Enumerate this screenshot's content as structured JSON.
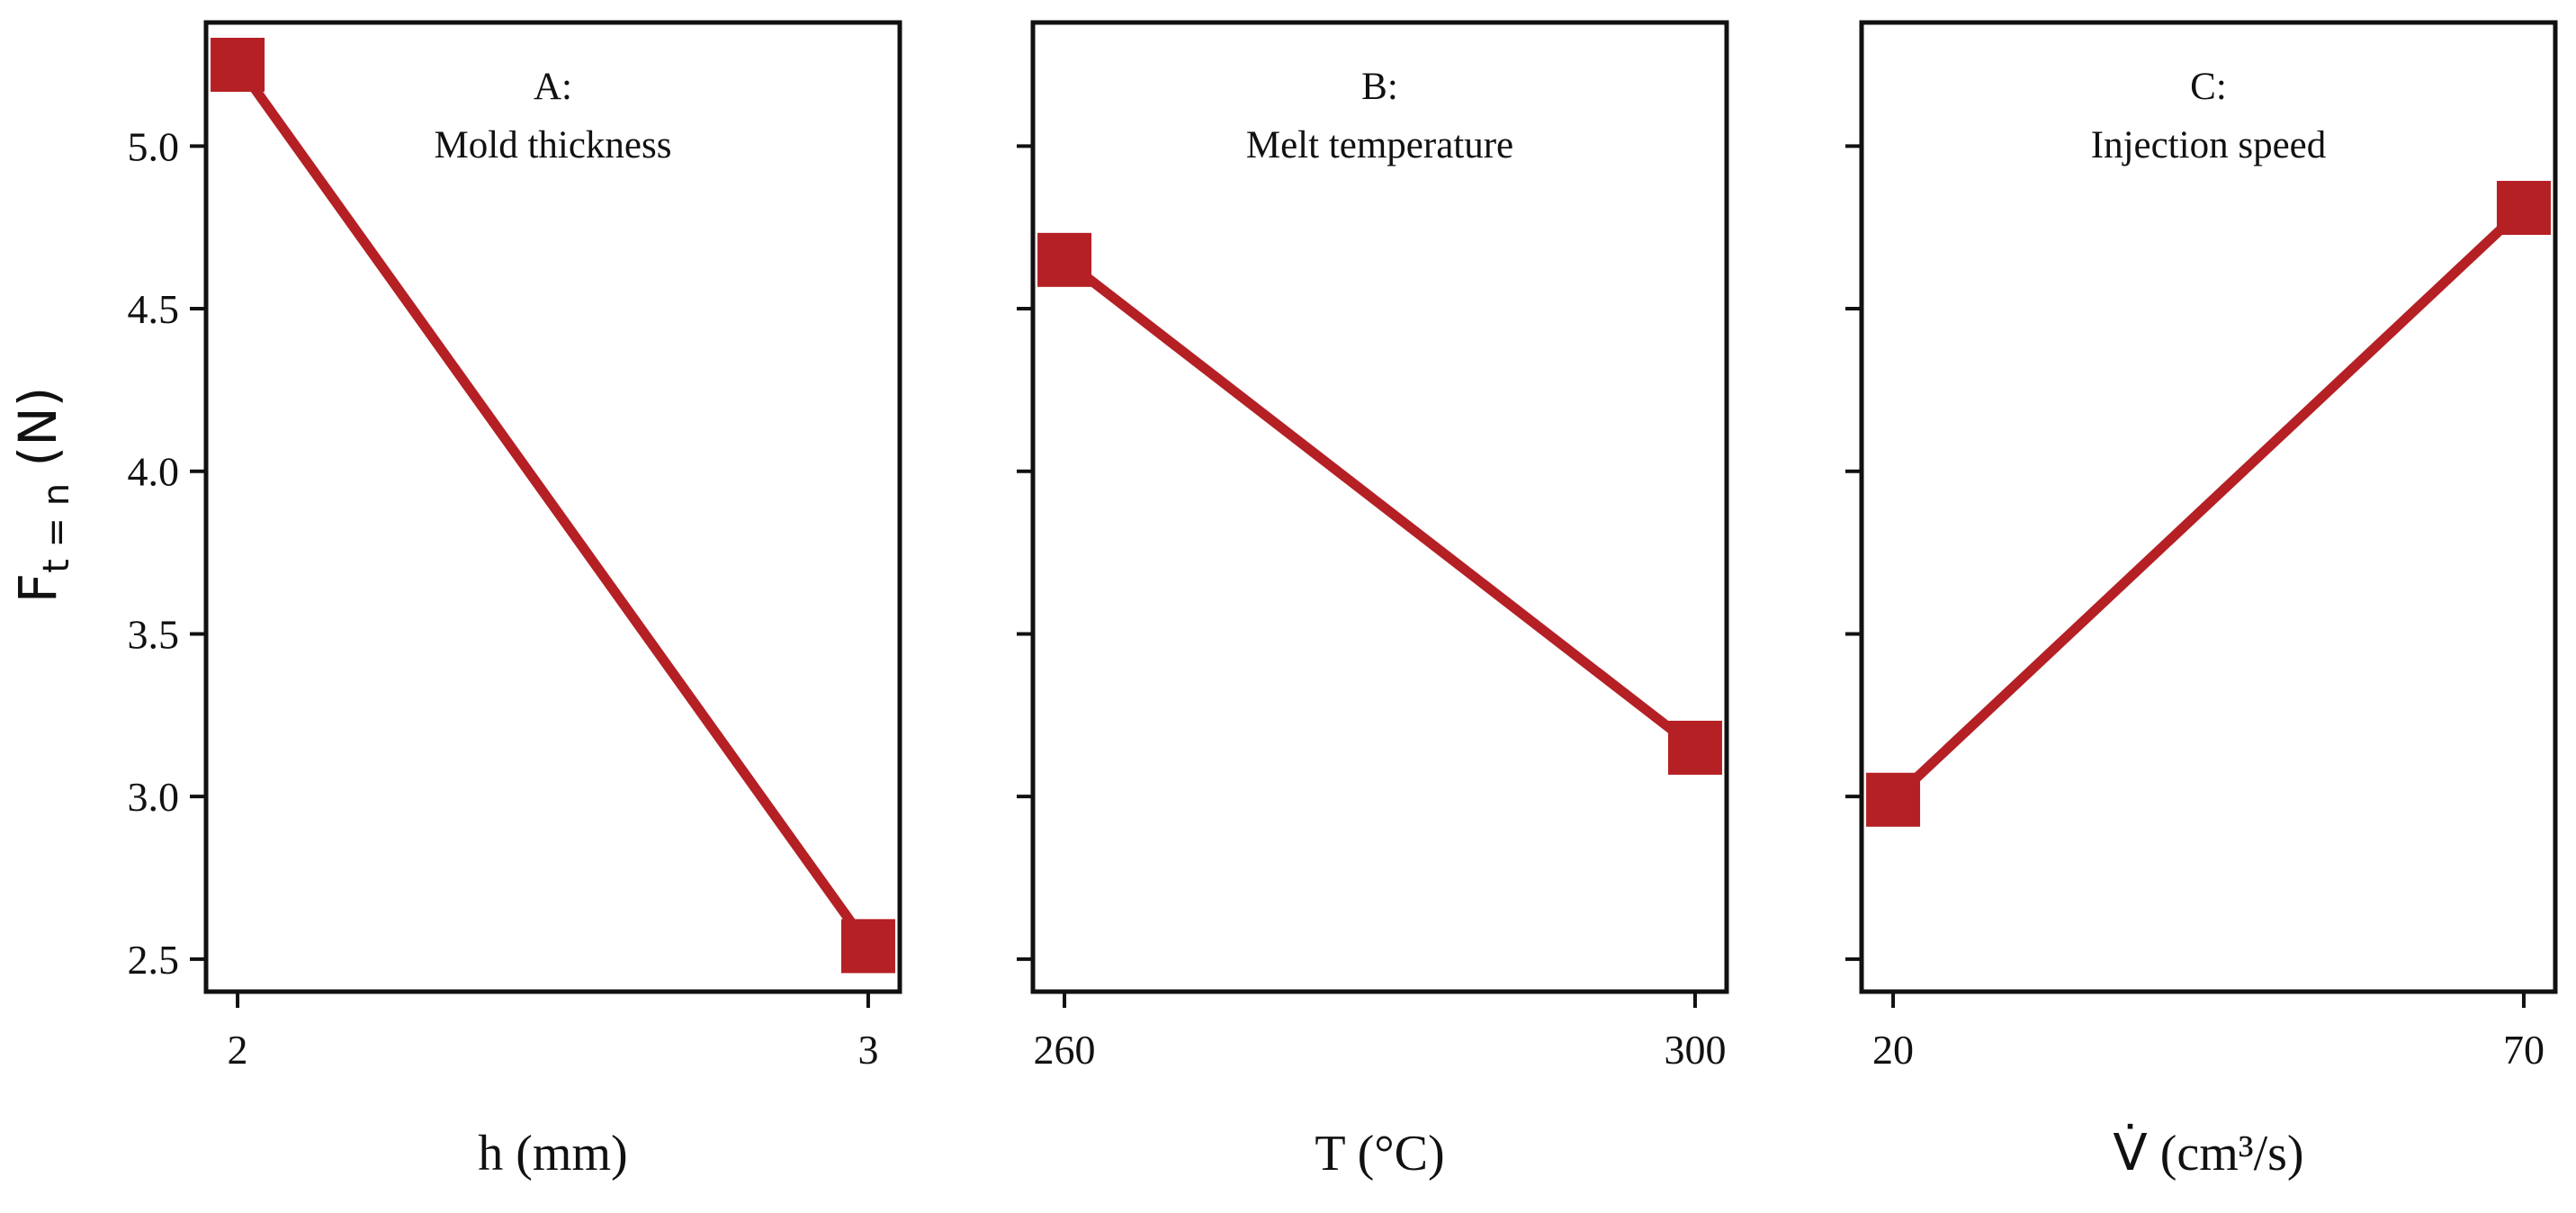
{
  "chart_data": [
    {
      "type": "line",
      "panel": "A",
      "title_line1": "A:",
      "title_line2": "Mold thickness",
      "xlabel": "h (mm)",
      "ylabel_main": "F",
      "ylabel_sub": "t = n",
      "ylabel_unit": " (N)",
      "x": [
        2,
        3
      ],
      "x_tick_labels": [
        "2",
        "3"
      ],
      "values": [
        5.25,
        2.54
      ],
      "xlim": [
        1.95,
        3.05
      ],
      "ylim": [
        2.4,
        5.38
      ],
      "y_ticks": [
        2.5,
        3.0,
        3.5,
        4.0,
        4.5,
        5.0
      ],
      "y_tick_labels": [
        "2.5",
        "3.0",
        "3.5",
        "4.0",
        "4.5",
        "5.0"
      ]
    },
    {
      "type": "line",
      "panel": "B",
      "title_line1": "B:",
      "title_line2": "Melt temperature",
      "xlabel": "T (°C)",
      "x": [
        260,
        300
      ],
      "x_tick_labels": [
        "260",
        "300"
      ],
      "values": [
        4.65,
        3.15
      ],
      "xlim": [
        258,
        302
      ],
      "ylim": [
        2.4,
        5.38
      ],
      "y_ticks": [
        2.5,
        3.0,
        3.5,
        4.0,
        4.5,
        5.0
      ]
    },
    {
      "type": "line",
      "panel": "C",
      "title_line1": "C:",
      "title_line2": "Injection speed",
      "xlabel_symbol": "V̇",
      "xlabel_rest": " (cm³/s)",
      "x": [
        20,
        70
      ],
      "x_tick_labels": [
        "20",
        "70"
      ],
      "values": [
        2.99,
        4.81
      ],
      "xlim": [
        17.5,
        72.5
      ],
      "ylim": [
        2.4,
        5.38
      ],
      "y_ticks": [
        2.5,
        3.0,
        3.5,
        4.0,
        4.5,
        5.0
      ]
    }
  ],
  "colors": {
    "series": "#b52025",
    "axes": "#111111",
    "text": "#111111"
  }
}
